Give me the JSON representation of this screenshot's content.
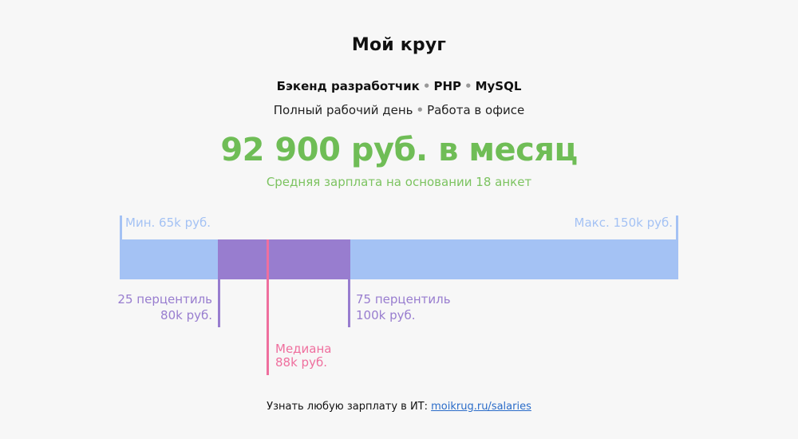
{
  "header": {
    "title": "Мой круг",
    "spec": [
      "Бэкенд разработчик",
      "PHP",
      "MySQL"
    ],
    "conditions": [
      "Полный рабочий день",
      "Работа в офисе"
    ],
    "separator": "•"
  },
  "summary": {
    "salary": "92 900 руб. в месяц",
    "subtitle": "Средняя зарплата на основании 18 анкет"
  },
  "colors": {
    "range": "#a4c2f4",
    "iqr": "#987dcf",
    "median": "#ef6f9e",
    "accent": "#6fbd56",
    "link": "#2a6cc9"
  },
  "chart_data": {
    "type": "boxplot",
    "title": "Средняя зарплата на основании 18 анкет",
    "unit": "k руб.",
    "range": [
      65,
      150
    ],
    "min": 65,
    "p25": 80,
    "median": 88,
    "p75": 100,
    "max": 150,
    "mean": 92.9,
    "sample_size": 18,
    "labels": {
      "min": "Мин. 65k руб.",
      "max": "Макс. 150k руб.",
      "p25_title": "25 перцентиль",
      "p25_value": "80k руб.",
      "p75_title": "75 перцентиль",
      "p75_value": "100k руб.",
      "median_title": "Медиана",
      "median_value": "88k руб."
    }
  },
  "footer": {
    "text": "Узнать любую зарплату в ИТ: ",
    "link_label": "moikrug.ru/salaries"
  }
}
